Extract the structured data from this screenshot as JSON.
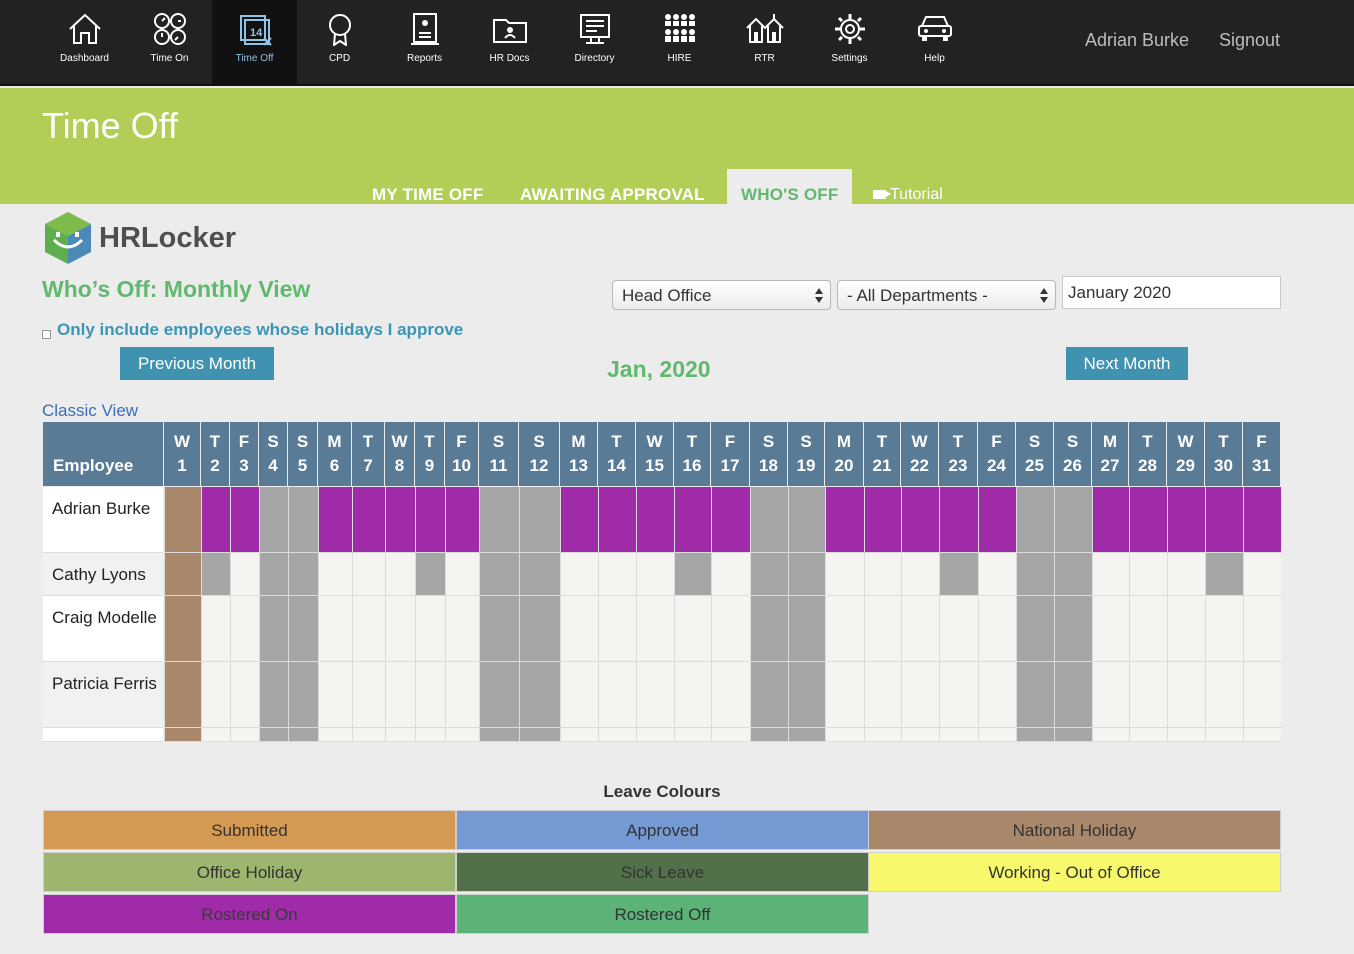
{
  "nav": {
    "items": [
      {
        "label": "Dashboard",
        "icon": "home-icon"
      },
      {
        "label": "Time On",
        "icon": "clocks-icon"
      },
      {
        "label": "Time Off",
        "icon": "calendar-icon"
      },
      {
        "label": "CPD",
        "icon": "award-icon"
      },
      {
        "label": "Reports",
        "icon": "report-icon"
      },
      {
        "label": "HR Docs",
        "icon": "folder-icon"
      },
      {
        "label": "Directory",
        "icon": "directory-icon"
      },
      {
        "label": "HIRE",
        "icon": "people-grid-icon"
      },
      {
        "label": "RTR",
        "icon": "houses-icon"
      },
      {
        "label": "Settings",
        "icon": "gear-icon"
      },
      {
        "label": "Help",
        "icon": "car-icon"
      }
    ],
    "active_index": 2,
    "user_name": "Adrian Burke",
    "signout": "Signout"
  },
  "header": {
    "title": "Time Off",
    "tabs": [
      "MY TIME OFF",
      "AWAITING APPROVAL",
      "WHO'S OFF"
    ],
    "active_tab": "WHO'S OFF",
    "tutorial": "Tutorial"
  },
  "logo": {
    "text": "HRLocker"
  },
  "main": {
    "heading": "Who’s Off: Monthly View",
    "checkbox_label": "Only include employees whose holidays I approve",
    "office_select": "Head Office",
    "department_select": "- All Departments -",
    "month_input": "January 2020",
    "prev_button": "Previous Month",
    "next_button": "Next Month",
    "month_title": "Jan, 2020",
    "classic_view": "Classic View"
  },
  "grid": {
    "employee_header": "Employee",
    "days": [
      {
        "l": "W",
        "n": "1"
      },
      {
        "l": "T",
        "n": "2"
      },
      {
        "l": "F",
        "n": "3"
      },
      {
        "l": "S",
        "n": "4"
      },
      {
        "l": "S",
        "n": "5"
      },
      {
        "l": "M",
        "n": "6"
      },
      {
        "l": "T",
        "n": "7"
      },
      {
        "l": "W",
        "n": "8"
      },
      {
        "l": "T",
        "n": "9"
      },
      {
        "l": "F",
        "n": "10"
      },
      {
        "l": "S",
        "n": "11"
      },
      {
        "l": "S",
        "n": "12"
      },
      {
        "l": "M",
        "n": "13"
      },
      {
        "l": "T",
        "n": "14"
      },
      {
        "l": "W",
        "n": "15"
      },
      {
        "l": "T",
        "n": "16"
      },
      {
        "l": "F",
        "n": "17"
      },
      {
        "l": "S",
        "n": "18"
      },
      {
        "l": "S",
        "n": "19"
      },
      {
        "l": "M",
        "n": "20"
      },
      {
        "l": "T",
        "n": "21"
      },
      {
        "l": "W",
        "n": "22"
      },
      {
        "l": "T",
        "n": "23"
      },
      {
        "l": "F",
        "n": "24"
      },
      {
        "l": "S",
        "n": "25"
      },
      {
        "l": "S",
        "n": "26"
      },
      {
        "l": "M",
        "n": "27"
      },
      {
        "l": "T",
        "n": "28"
      },
      {
        "l": "W",
        "n": "29"
      },
      {
        "l": "T",
        "n": "30"
      },
      {
        "l": "F",
        "n": "31"
      }
    ],
    "employees": [
      {
        "name": "Adrian Burke",
        "codes": "HRRGGRRRRRGGRRRRRGGRRRRRGGRRRRR"
      },
      {
        "name": "Cathy Lyons",
        "codes": "HGWGGWWWGWGGWWWGWGGWWWGWGGWWWGW"
      },
      {
        "name": "Craig Modelle",
        "codes": "HWWGGWWWWWGGWWWWWGGWWWWWGGWWWWW"
      },
      {
        "name": "Patricia Ferris",
        "codes": "HWWGGWWWWWGGWWWWWGGWWWWWGGWWWWW"
      },
      {
        "name": "",
        "codes": "HWWGGWWWWWGGWWWWWGGWWWWWGGWWWWW"
      }
    ],
    "code_colors": {
      "H": "#a9876a",
      "R": "#a02ba9",
      "G": "#a6a6a6",
      "W": "#f5f4f1"
    }
  },
  "legend": {
    "title": "Leave Colours",
    "items": [
      {
        "label": "Submitted",
        "color": "#d49a53",
        "text": "#333333"
      },
      {
        "label": "Approved",
        "color": "#7599d2",
        "text": "#333333"
      },
      {
        "label": "National Holiday",
        "color": "#a9876a",
        "text": "#333333"
      },
      {
        "label": "Office Holiday",
        "color": "#9cb56f",
        "text": "#333333"
      },
      {
        "label": "Sick Leave",
        "color": "#527049",
        "text": "#333333"
      },
      {
        "label": "Working - Out of Office",
        "color": "#f8f86d",
        "text": "#333333"
      },
      {
        "label": "Rostered On",
        "color": "#a02ba9",
        "text": "#3a3a3a"
      },
      {
        "label": "Rostered Off",
        "color": "#5cb377",
        "text": "#333333"
      }
    ]
  }
}
